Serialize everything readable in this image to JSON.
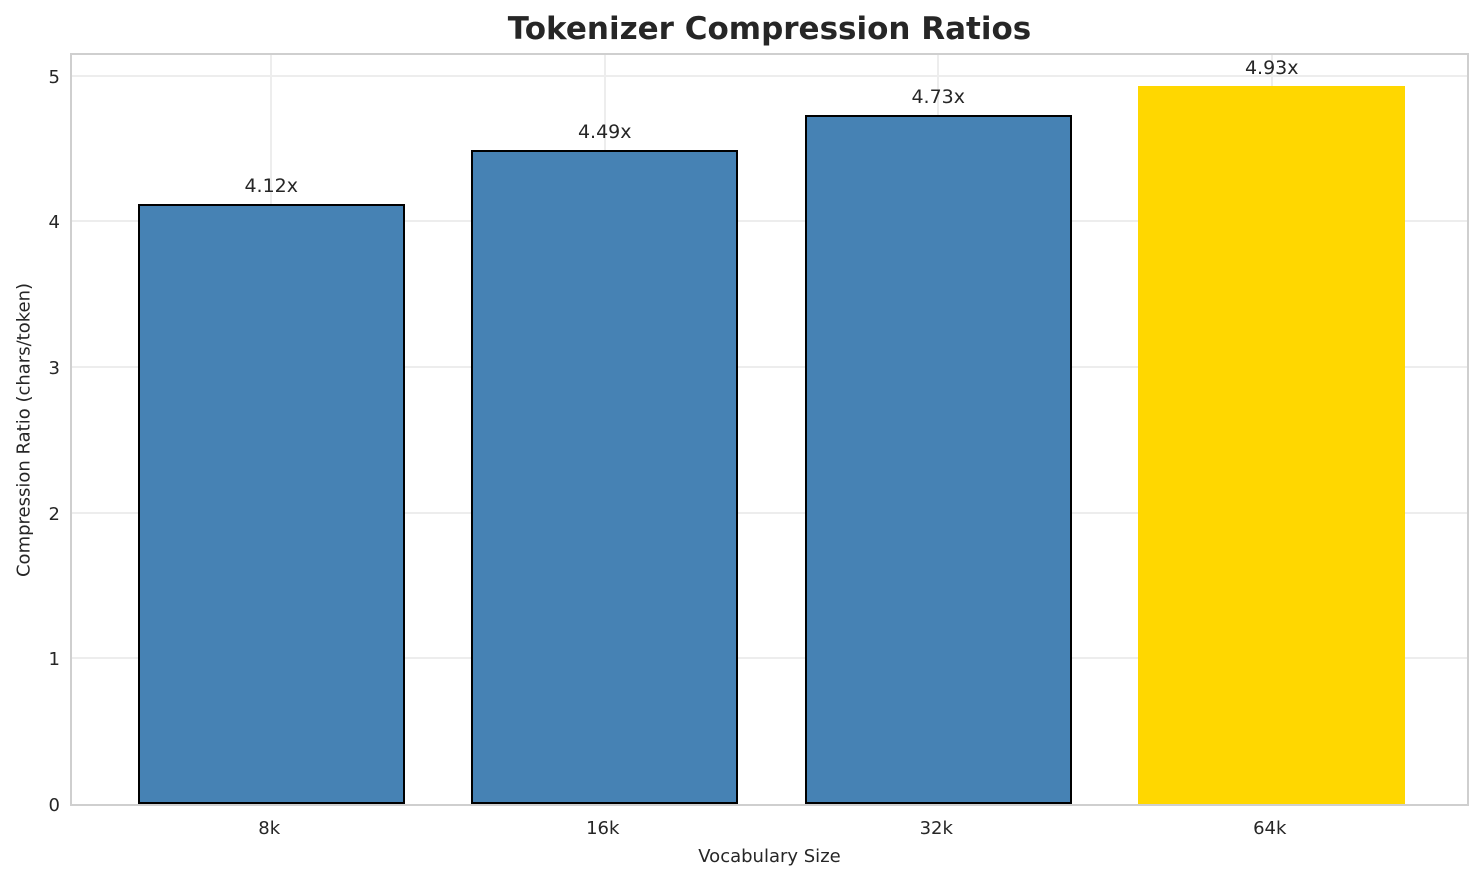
{
  "figure": {
    "background_color": "#ffffff",
    "spine_color": "#cfcfcf",
    "grid_color": "#ededed",
    "text_color": "#262626"
  },
  "chart_data": {
    "type": "bar",
    "title": "Tokenizer Compression Ratios",
    "xlabel": "Vocabulary Size",
    "ylabel": "Compression Ratio (chars/token)",
    "categories": [
      "8k",
      "16k",
      "32k",
      "64k"
    ],
    "values": [
      4.12,
      4.49,
      4.73,
      4.93
    ],
    "bar_labels": [
      "4.12x",
      "4.49x",
      "4.73x",
      "4.93x"
    ],
    "yticks": [
      0,
      1,
      2,
      3,
      4,
      5
    ],
    "ylim": [
      0,
      5.17
    ],
    "grid": true,
    "legend": "none",
    "bar_colors": [
      "#4682B4",
      "#4682B4",
      "#4682B4",
      "#FFD700"
    ],
    "bar_edge_colors": [
      "#000000",
      "#000000",
      "#000000",
      "none"
    ],
    "highlight_index": 3,
    "highlight_color": "#FFD700",
    "base_color": "#4682B4"
  }
}
